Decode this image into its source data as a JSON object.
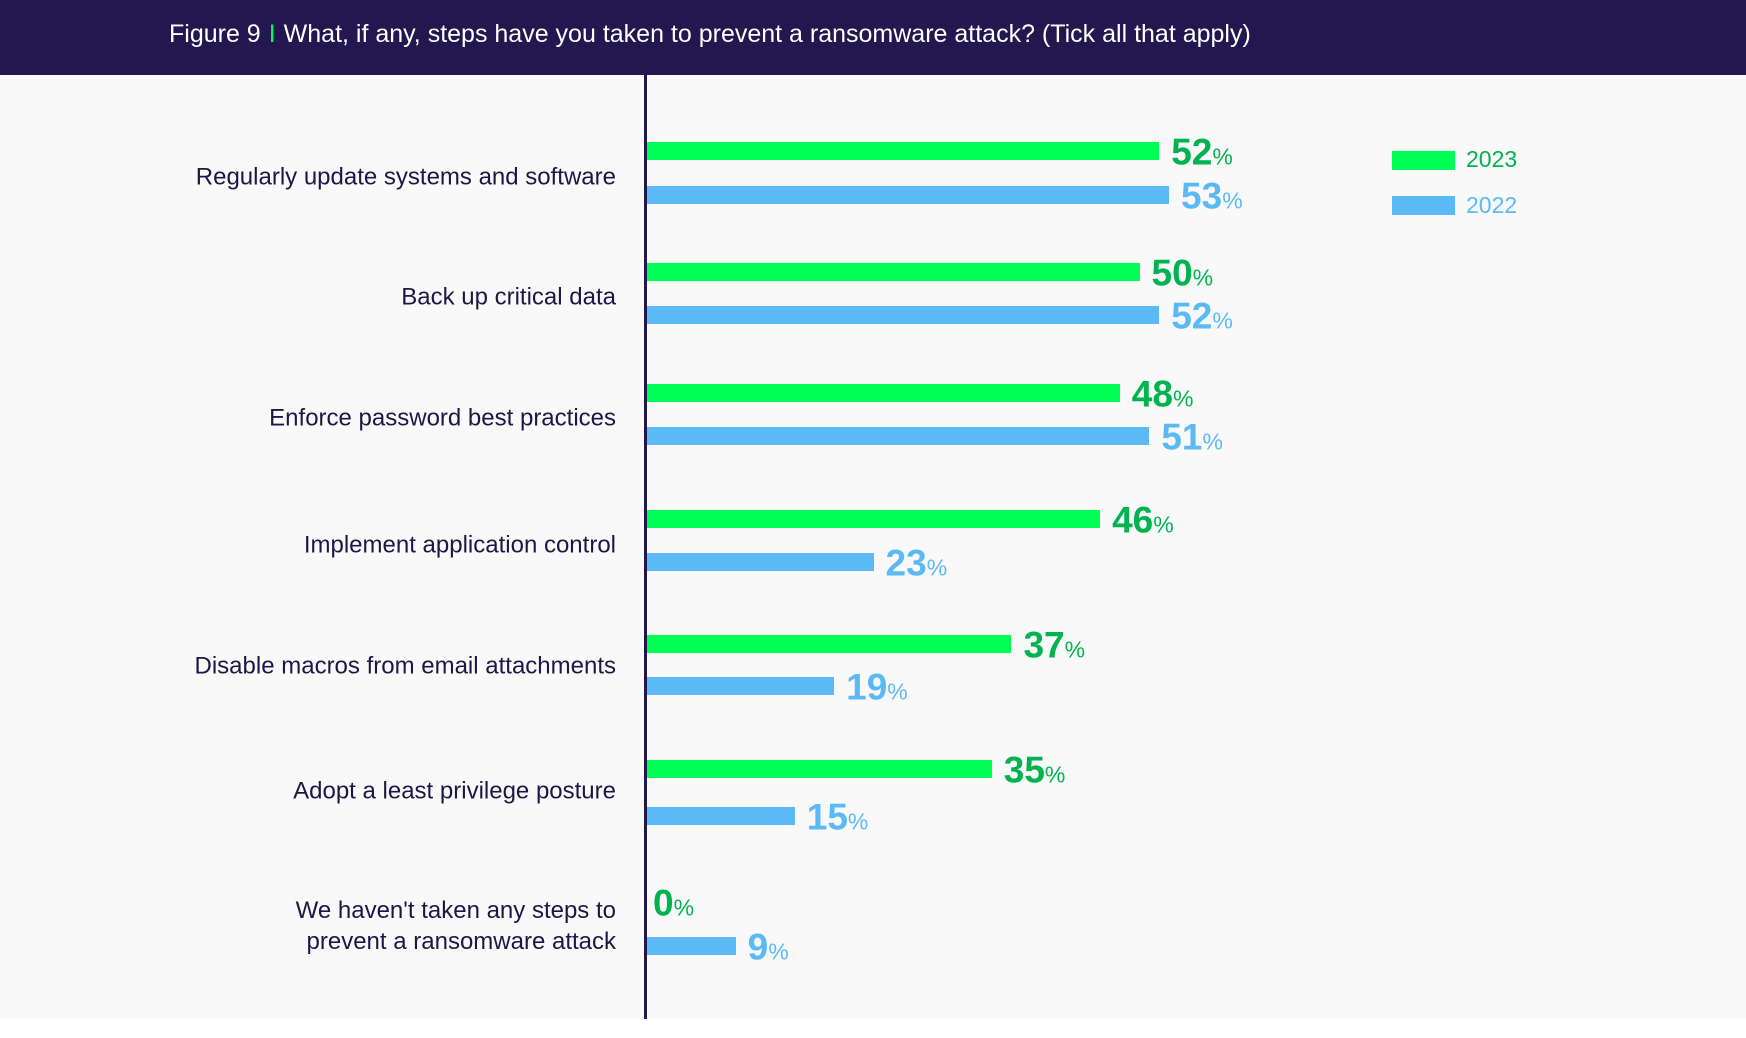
{
  "header": {
    "figure_label": "Figure 9",
    "separator": "I",
    "title": "What, if any, steps have you taken to prevent a ransomware attack? (Tick all that apply)"
  },
  "colors": {
    "header_bg": "#22174f",
    "bar_2023": "#00ff55",
    "text_2023": "#00b34f",
    "bar_2022": "#5bbaf5",
    "text_2022": "#5bbaf5"
  },
  "chart_data": {
    "type": "bar",
    "orientation": "horizontal",
    "title": "What, if any, steps have you taken to prevent a ransomware attack? (Tick all that apply)",
    "categories": [
      "Regularly update systems and software",
      "Back up critical data",
      "Enforce password best practices",
      "Implement application control",
      "Disable macros from email attachments",
      "Adopt a least privilege posture",
      "We haven't taken any steps to prevent a ransomware attack"
    ],
    "series": [
      {
        "name": "2023",
        "values": [
          52,
          50,
          48,
          46,
          37,
          35,
          0
        ]
      },
      {
        "name": "2022",
        "values": [
          53,
          52,
          51,
          23,
          19,
          15,
          9
        ]
      }
    ],
    "unit": "%",
    "legend": "top-right",
    "grid": false,
    "xlim": [
      0,
      100
    ]
  }
}
